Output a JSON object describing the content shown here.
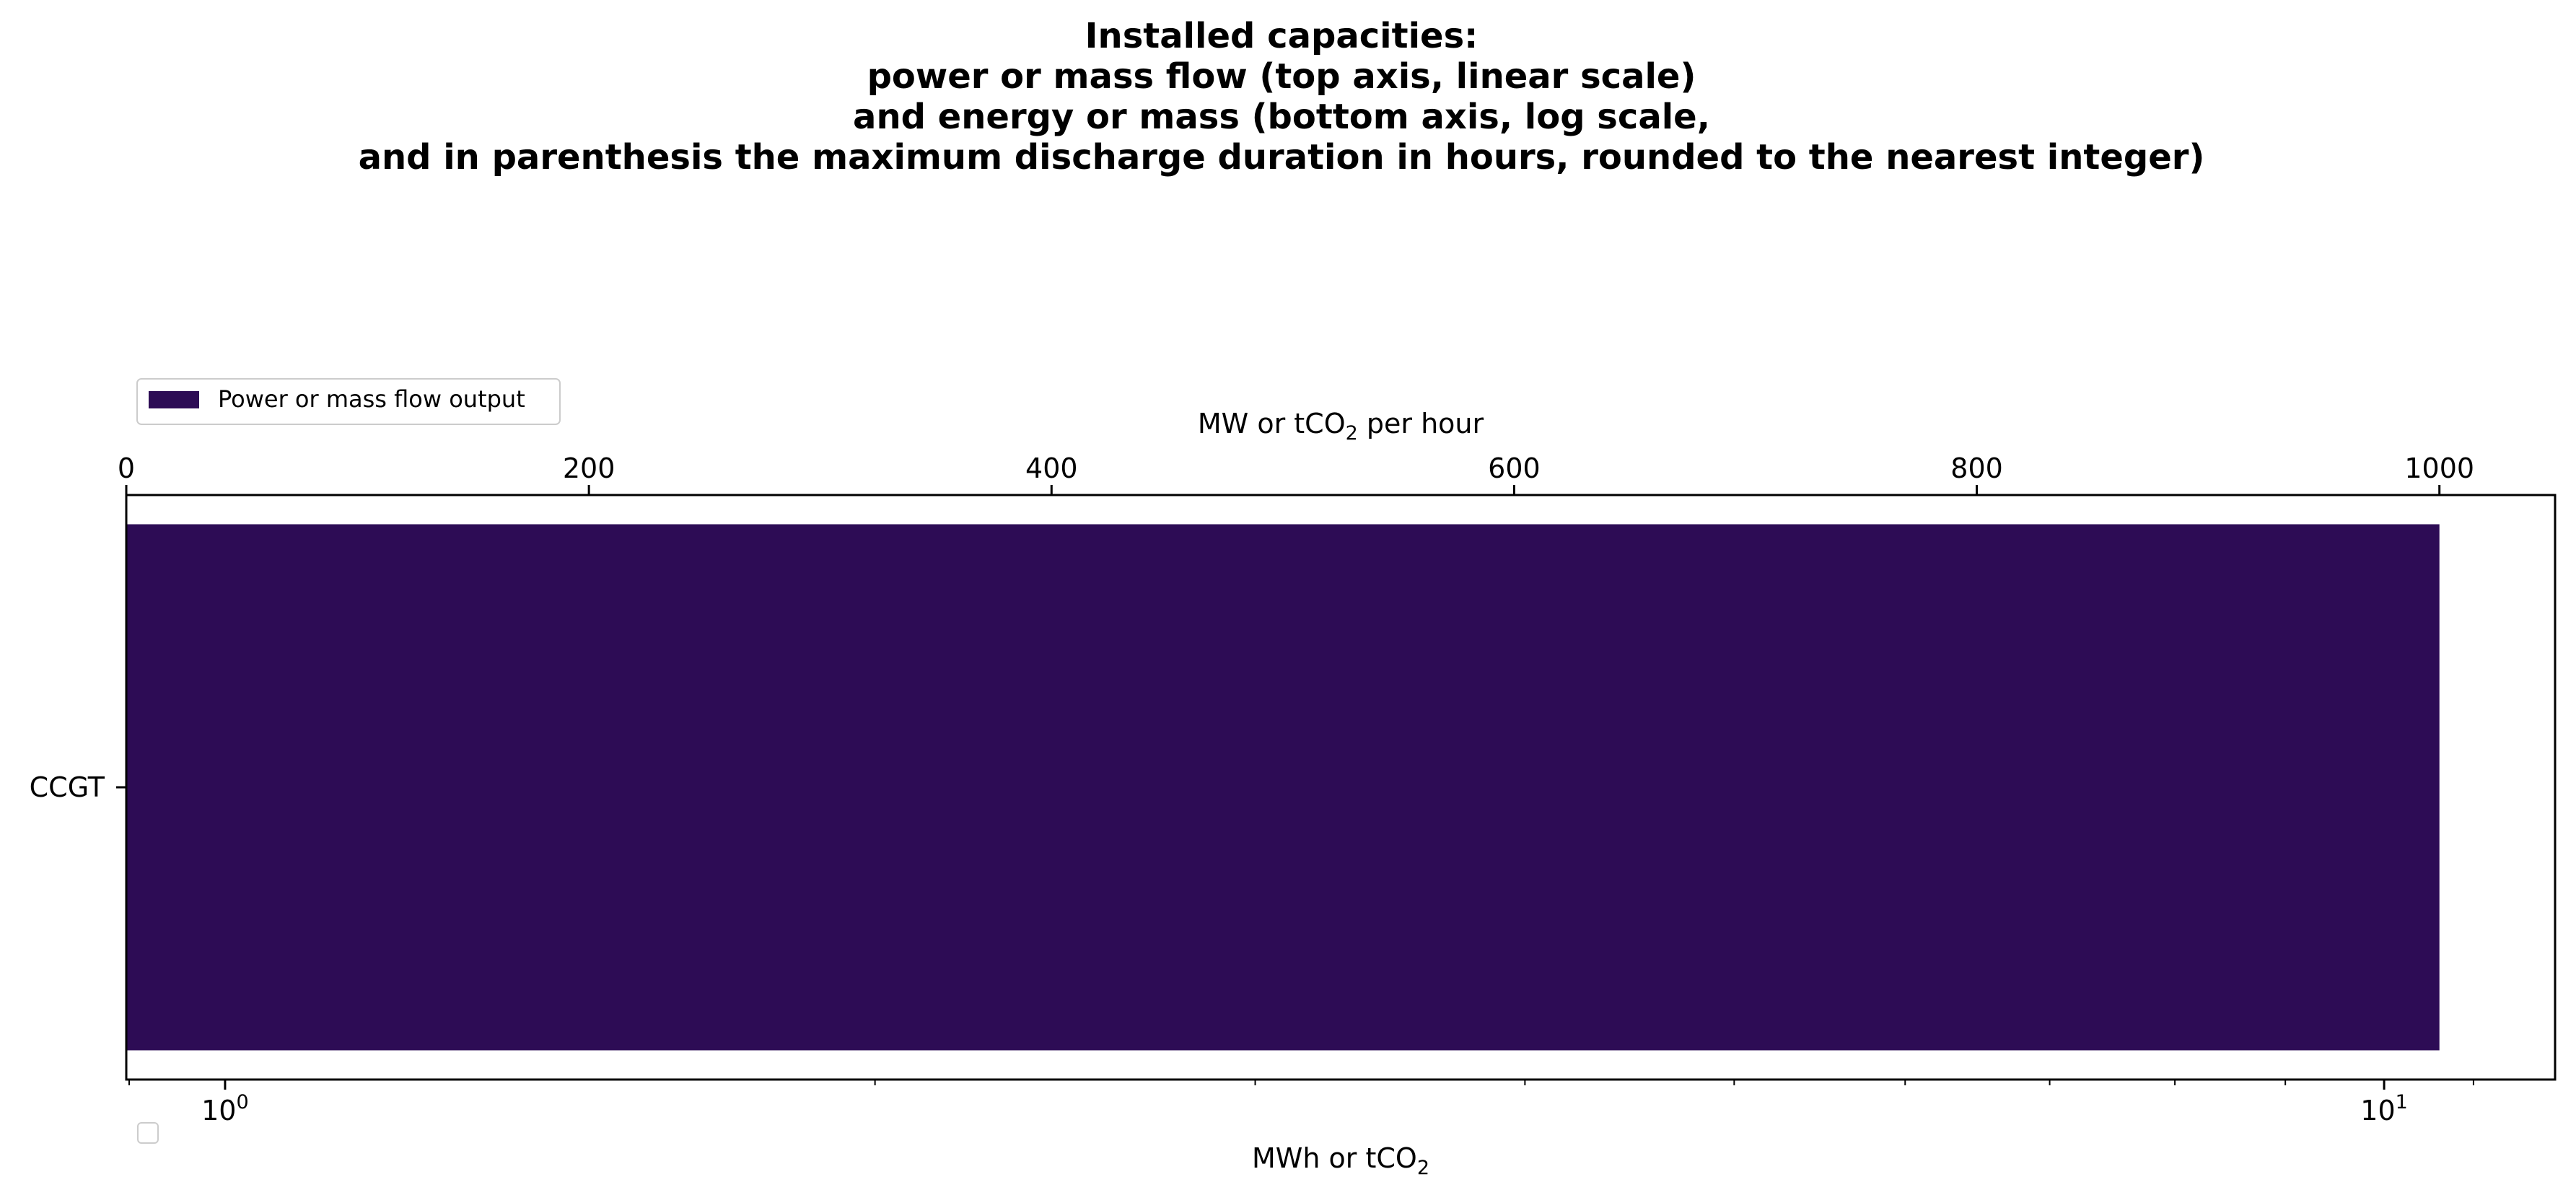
{
  "chart_data": {
    "type": "bar",
    "orientation": "horizontal",
    "title_lines": [
      "Installed capacities:",
      "power or mass flow (top axis, linear scale)",
      "and energy or mass (bottom axis, log scale,",
      "and in parenthesis the maximum discharge duration in hours, rounded to the nearest integer)"
    ],
    "categories": [
      "CCGT"
    ],
    "series": [
      {
        "name": "Power or mass flow output",
        "values": [
          1000
        ],
        "color": "#2d0c55"
      }
    ],
    "top_axis": {
      "label_prefix": "MW or tCO",
      "label_sub": "2",
      "label_suffix": " per hour",
      "scale": "linear",
      "range": [
        0,
        1050
      ],
      "ticks": [
        0,
        200,
        400,
        600,
        800,
        1000
      ],
      "tick_labels": [
        "0",
        "200",
        "400",
        "600",
        "800",
        "1000"
      ]
    },
    "bottom_axis": {
      "label_prefix": "MWh or tCO",
      "label_sub": "2",
      "scale": "log",
      "range": [
        0.9,
        12
      ],
      "major_ticks": [
        1,
        10
      ],
      "tick_bases": [
        "10",
        "10"
      ],
      "tick_exponents": [
        "0",
        "1"
      ],
      "minor_ticks": [
        2,
        3,
        4,
        5,
        6,
        7,
        8,
        9
      ]
    },
    "legend": {
      "placement": "above-plot-left",
      "entries": [
        "Power or mass flow output"
      ]
    },
    "empty_legend": {
      "placement": "bottom-left"
    },
    "grid": false
  }
}
